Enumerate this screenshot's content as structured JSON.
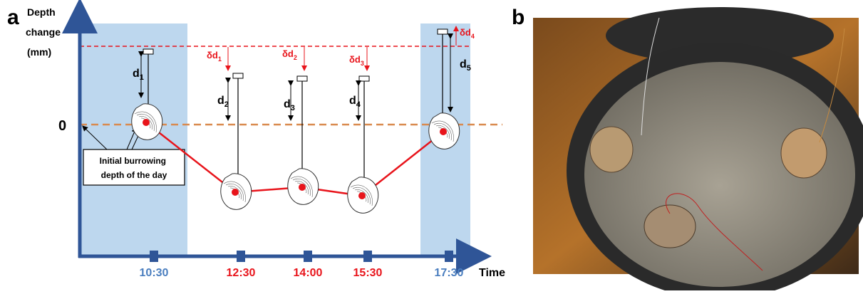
{
  "panel_a": {
    "label": "a",
    "y_axis_label": [
      "Depth",
      "change",
      "(mm)"
    ],
    "zero_label": "0",
    "annotation": [
      "Initial burrowing",
      "depth of the day"
    ],
    "x_axis_label": "Time",
    "times": [
      {
        "text": "10:30",
        "color": "#4a7ebf"
      },
      {
        "text": "12:30",
        "color": "#e8141b"
      },
      {
        "text": "14:00",
        "color": "#e8141b"
      },
      {
        "text": "15:30",
        "color": "#e8141b"
      },
      {
        "text": "17:30",
        "color": "#4a7ebf"
      }
    ],
    "depths": [
      {
        "main": "d",
        "sub": "1"
      },
      {
        "main": "d",
        "sub": "2"
      },
      {
        "main": "d",
        "sub": "3"
      },
      {
        "main": "d",
        "sub": "4"
      },
      {
        "main": "d",
        "sub": "5"
      }
    ],
    "deltas": [
      {
        "main": "δd",
        "sub": "1"
      },
      {
        "main": "δd",
        "sub": "2"
      },
      {
        "main": "δd",
        "sub": "3"
      },
      {
        "main": "δd",
        "sub": "4"
      }
    ]
  },
  "panel_b": {
    "label": "b"
  }
}
